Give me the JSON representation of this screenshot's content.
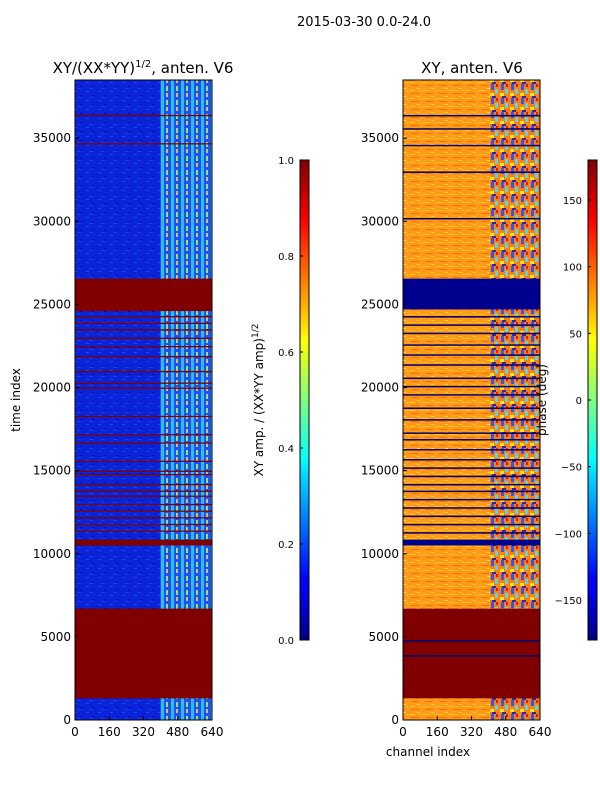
{
  "figure": {
    "suptitle": "2015-03-30 0.0-24.0",
    "ylabel": "time index",
    "xlabel": "channel index"
  },
  "colors": {
    "red_band": "#800000",
    "blue_band": "#00008f",
    "amp_background": "#0a23d6",
    "phase_background": "#ff9b1a"
  },
  "chart_data": [
    {
      "type": "heatmap",
      "id": "amp",
      "title": "XY/(XX*YY)",
      "title_sup": "1/2",
      "title_tail": ", anten. V6",
      "xlim": [
        0,
        640
      ],
      "ylim": [
        0,
        38500
      ],
      "x_ticks": [
        0,
        160,
        320,
        480,
        640
      ],
      "y_ticks": [
        0,
        5000,
        10000,
        15000,
        20000,
        25000,
        30000,
        35000
      ],
      "colorbar": {
        "range": [
          0.0,
          1.0
        ],
        "ticks": [
          "0.0",
          "0.2",
          "0.4",
          "0.6",
          "0.8",
          "1.0"
        ],
        "label": "XY amp. / (XX*YY amp)",
        "label_sup": "1/2"
      },
      "bands": [
        {
          "from": 1300,
          "to": 6700,
          "color": "red"
        },
        {
          "from": 26550,
          "to": 38500,
          "color": "none"
        },
        {
          "from": 24600,
          "to": 26550,
          "color": "red"
        },
        {
          "from": 10500,
          "to": 10850,
          "color": "red"
        }
      ],
      "lines_red": [
        36400,
        34700,
        24300,
        23900,
        23500,
        23000,
        22500,
        21900,
        21000,
        20300,
        20000,
        18300,
        17200,
        16700,
        15600,
        15000,
        14800,
        14200,
        13800,
        13500,
        13000,
        12600,
        12200,
        11800,
        11400
      ]
    },
    {
      "type": "heatmap",
      "id": "phase",
      "title": "XY, anten. V6",
      "xlim": [
        0,
        640
      ],
      "ylim": [
        0,
        38500
      ],
      "x_ticks": [
        0,
        160,
        320,
        480,
        640
      ],
      "y_ticks": [
        0,
        5000,
        10000,
        15000,
        20000,
        25000,
        30000,
        35000
      ],
      "colorbar": {
        "range": [
          -180,
          180
        ],
        "ticks": [
          "−150",
          "−100",
          "−50",
          "0",
          "50",
          "100",
          "150"
        ],
        "tick_values": [
          -150,
          -100,
          -50,
          0,
          50,
          100,
          150
        ],
        "label": "phase (deg)"
      },
      "bands": [
        {
          "from": 1300,
          "to": 6700,
          "color": "red"
        },
        {
          "from": 24700,
          "to": 26550,
          "color": "blue"
        },
        {
          "from": 10500,
          "to": 10850,
          "color": "blue"
        }
      ],
      "lines_blue": [
        36400,
        35600,
        34600,
        33000,
        30200,
        24300,
        23800,
        23300,
        22600,
        22000,
        21400,
        20600,
        20100,
        19600,
        18800,
        18100,
        17300,
        16900,
        16300,
        15700,
        15200,
        14700,
        14200,
        13800,
        13300,
        12800,
        12300,
        11800,
        11300,
        4800,
        3900
      ]
    }
  ]
}
